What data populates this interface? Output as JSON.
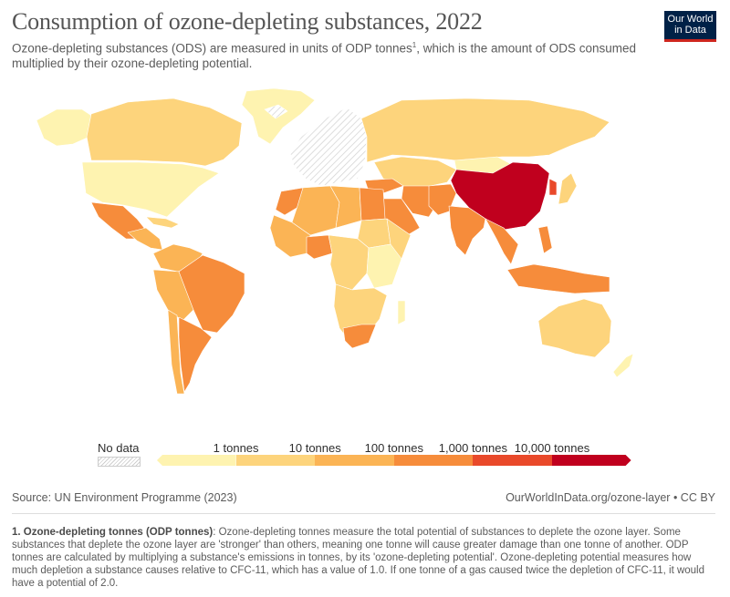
{
  "header": {
    "title": "Consumption of ozone-depleting substances, 2022",
    "subtitle_a": "Ozone-depleting substances (ODS) are measured in units of ODP tonnes",
    "subtitle_sup": "1",
    "subtitle_b": ", which is the amount of ODS consumed multiplied by their ozone-depleting potential."
  },
  "logo": {
    "line1": "Our World",
    "line2": "in Data"
  },
  "legend": {
    "no_data_label": "No data",
    "bins": [
      {
        "label": "",
        "color": "#fef3b0"
      },
      {
        "label": "1 tonnes",
        "color": "#fdd47c"
      },
      {
        "label": "10 tonnes",
        "color": "#fbb455"
      },
      {
        "label": "100 tonnes",
        "color": "#f68c3b"
      },
      {
        "label": "1,000 tonnes",
        "color": "#e9492a"
      },
      {
        "label": "10,000 tonnes",
        "color": "#c0001e"
      }
    ]
  },
  "colors": {
    "very_low": "#fef3b0",
    "low": "#fdd47c",
    "mid": "#fbb455",
    "high": "#f68c3b",
    "very_high": "#e9492a",
    "highest": "#c0001e",
    "no_data": "#f1f1f1"
  },
  "regions": [
    {
      "name": "Greenland",
      "level": "very_low"
    },
    {
      "name": "Canada",
      "level": "low"
    },
    {
      "name": "United States",
      "level": "very_low"
    },
    {
      "name": "Mexico",
      "level": "high"
    },
    {
      "name": "Brazil",
      "level": "high"
    },
    {
      "name": "Argentina",
      "level": "high"
    },
    {
      "name": "Europe",
      "level": "no_data"
    },
    {
      "name": "Russia",
      "level": "low"
    },
    {
      "name": "China",
      "level": "highest"
    },
    {
      "name": "India",
      "level": "high"
    },
    {
      "name": "Australia",
      "level": "low"
    },
    {
      "name": "Algeria",
      "level": "mid"
    },
    {
      "name": "Egypt",
      "level": "high"
    },
    {
      "name": "Indonesia",
      "level": "high"
    }
  ],
  "footer": {
    "source": "Source: UN Environment Programme (2023)",
    "credit": "OurWorldInData.org/ozone-layer • CC BY",
    "note_title": "1. Ozone-depleting tonnes (ODP tonnes)",
    "note_text": ": Ozone-depleting tonnes measure the total potential of substances to deplete the ozone layer. Some substances that deplete the ozone layer are 'stronger' than others, meaning one tonne will cause greater damage than one tonne of another. ODP tonnes are calculated by multiplying a substance's emissions in tonnes, by its 'ozone-depleting potential'. Ozone-depleting potential measures how much depletion a substance causes relative to CFC-11, which has a value of 1.0. If one tonne of a gas caused twice the depletion of CFC-11, it would have a potential of 2.0."
  }
}
